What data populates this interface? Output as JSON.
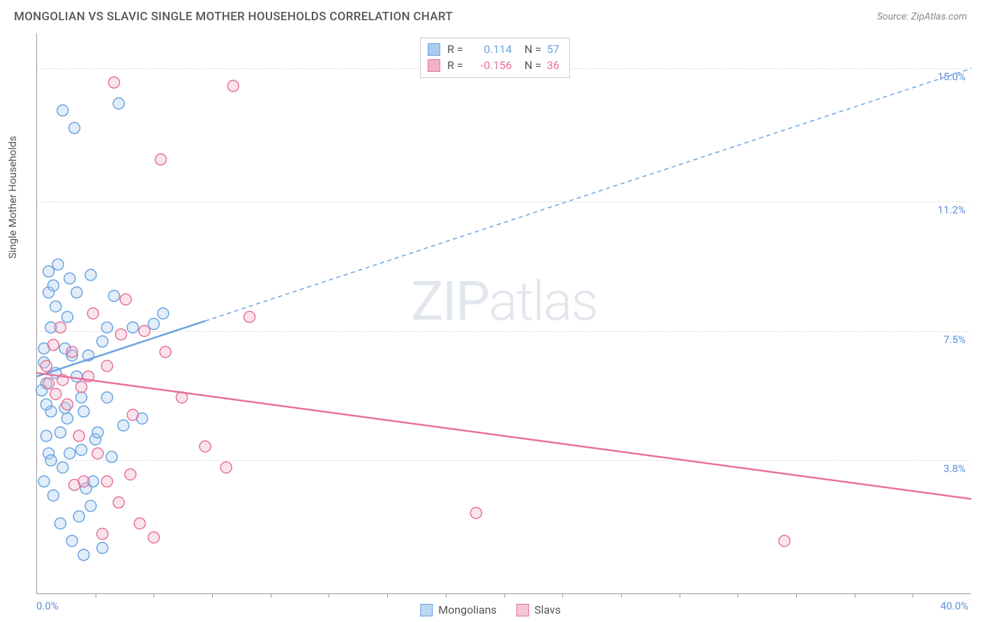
{
  "title": "MONGOLIAN VS SLAVIC SINGLE MOTHER HOUSEHOLDS CORRELATION CHART",
  "source": "Source: ZipAtlas.com",
  "watermark": "ZIPatlas",
  "y_axis_label": "Single Mother Households",
  "chart": {
    "type": "scatter",
    "xlim": [
      0,
      40
    ],
    "ylim": [
      0,
      16
    ],
    "x_tick_step": 2.5,
    "y_gridlines": [
      3.8,
      7.5,
      11.2,
      15.0
    ],
    "y_tick_labels": [
      "3.8%",
      "7.5%",
      "11.2%",
      "15.0%"
    ],
    "x_min_label": "0.0%",
    "x_max_label": "40.0%",
    "background_color": "#ffffff",
    "grid_color": "#dddddd",
    "axis_color": "#999999",
    "series": [
      {
        "name": "Mongolians",
        "color": "#6aa2e0",
        "fill": "#a9cbed",
        "r_value": "0.114",
        "n_value": "57",
        "trend": {
          "x1": 0,
          "y1": 6.2,
          "x2": 40,
          "y2": 15.0,
          "solid_to_x": 7.2
        },
        "points": [
          [
            0.3,
            7.0
          ],
          [
            0.4,
            6.0
          ],
          [
            0.5,
            8.6
          ],
          [
            0.6,
            5.2
          ],
          [
            0.7,
            8.8
          ],
          [
            0.8,
            6.3
          ],
          [
            0.3,
            6.6
          ],
          [
            0.4,
            5.4
          ],
          [
            0.6,
            7.6
          ],
          [
            0.8,
            8.2
          ],
          [
            1.1,
            13.8
          ],
          [
            1.2,
            7.0
          ],
          [
            1.3,
            5.0
          ],
          [
            1.4,
            9.0
          ],
          [
            1.6,
            13.3
          ],
          [
            1.7,
            8.6
          ],
          [
            1.9,
            5.6
          ],
          [
            2.1,
            3.0
          ],
          [
            2.2,
            6.8
          ],
          [
            2.3,
            9.1
          ],
          [
            2.5,
            4.4
          ],
          [
            2.8,
            1.3
          ],
          [
            3.0,
            7.6
          ],
          [
            3.2,
            3.9
          ],
          [
            3.3,
            8.5
          ],
          [
            3.5,
            14.0
          ],
          [
            2.0,
            1.1
          ],
          [
            1.1,
            3.6
          ],
          [
            2.3,
            2.5
          ],
          [
            1.5,
            1.5
          ],
          [
            2.6,
            4.6
          ],
          [
            1.9,
            4.1
          ],
          [
            1.0,
            4.6
          ],
          [
            0.5,
            4.0
          ],
          [
            1.2,
            5.3
          ],
          [
            4.1,
            7.6
          ],
          [
            4.5,
            5.0
          ],
          [
            5.0,
            7.7
          ],
          [
            5.4,
            8.0
          ],
          [
            0.2,
            5.8
          ],
          [
            0.3,
            3.2
          ],
          [
            1.8,
            2.2
          ],
          [
            2.4,
            3.2
          ],
          [
            3.0,
            5.6
          ],
          [
            1.5,
            6.8
          ],
          [
            0.9,
            9.4
          ],
          [
            0.6,
            3.8
          ],
          [
            2.8,
            7.2
          ],
          [
            0.4,
            4.5
          ],
          [
            0.7,
            2.8
          ],
          [
            1.3,
            7.9
          ],
          [
            1.7,
            6.2
          ],
          [
            2.0,
            5.2
          ],
          [
            1.0,
            2.0
          ],
          [
            1.4,
            4.0
          ],
          [
            3.7,
            4.8
          ],
          [
            0.5,
            9.2
          ]
        ]
      },
      {
        "name": "Slavs",
        "color": "#e77099",
        "fill": "#f0b2c8",
        "r_value": "-0.156",
        "n_value": "36",
        "trend": {
          "x1": 0,
          "y1": 6.3,
          "x2": 40,
          "y2": 2.7,
          "solid_to_x": 40
        },
        "points": [
          [
            0.4,
            6.5
          ],
          [
            0.5,
            6.0
          ],
          [
            0.7,
            7.1
          ],
          [
            0.8,
            5.7
          ],
          [
            1.1,
            6.1
          ],
          [
            1.3,
            5.4
          ],
          [
            1.5,
            6.9
          ],
          [
            1.9,
            5.9
          ],
          [
            2.0,
            3.2
          ],
          [
            2.2,
            6.2
          ],
          [
            2.6,
            4.0
          ],
          [
            3.0,
            6.5
          ],
          [
            3.3,
            14.6
          ],
          [
            3.6,
            7.4
          ],
          [
            3.8,
            8.4
          ],
          [
            4.1,
            5.1
          ],
          [
            4.4,
            2.0
          ],
          [
            4.6,
            7.5
          ],
          [
            5.0,
            1.6
          ],
          [
            5.3,
            12.4
          ],
          [
            5.5,
            6.9
          ],
          [
            7.2,
            4.2
          ],
          [
            8.1,
            3.6
          ],
          [
            8.4,
            14.5
          ],
          [
            9.1,
            7.9
          ],
          [
            2.8,
            1.7
          ],
          [
            3.5,
            2.6
          ],
          [
            1.6,
            3.1
          ],
          [
            6.2,
            5.6
          ],
          [
            2.4,
            8.0
          ],
          [
            1.0,
            7.6
          ],
          [
            3.0,
            3.2
          ],
          [
            32.0,
            1.5
          ],
          [
            18.8,
            2.3
          ],
          [
            4.0,
            3.4
          ],
          [
            1.8,
            4.5
          ]
        ]
      }
    ]
  },
  "legend_bottom": [
    {
      "label": "Mongolians",
      "border": "#6aa2e0",
      "fill": "#bcd6f0"
    },
    {
      "label": "Slavs",
      "border": "#e77099",
      "fill": "#f3c6d7"
    }
  ],
  "legend_top_labels": {
    "r": "R =",
    "n": "N ="
  }
}
